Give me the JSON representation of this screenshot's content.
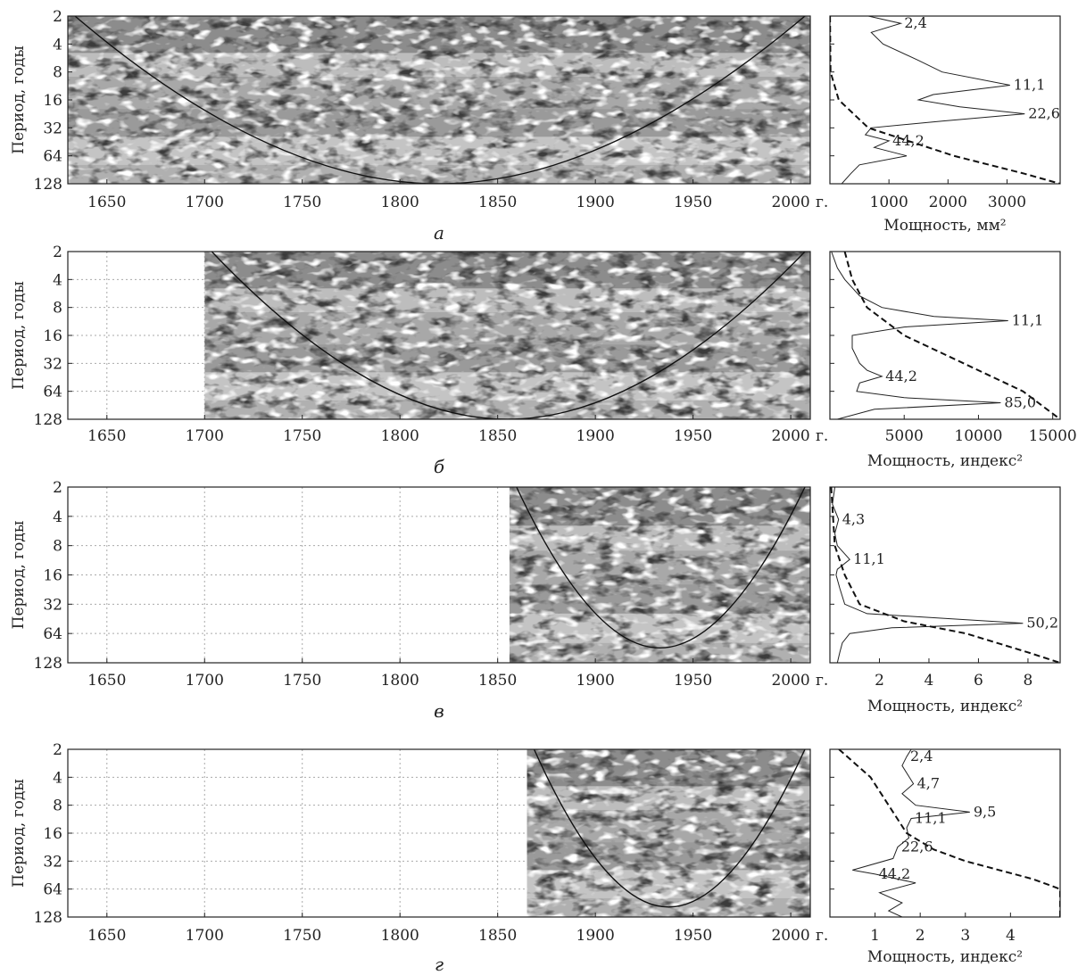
{
  "chart_data": [
    {
      "panel_letter": "а",
      "wavelet": {
        "type": "heatmap",
        "ylabel": "Период, годы",
        "y_ticks": [
          "2",
          "4",
          "8",
          "16",
          "32",
          "64",
          "128"
        ],
        "x_ticks": [
          "1650",
          "1700",
          "1750",
          "1800",
          "1850",
          "1900",
          "1950",
          "2000"
        ],
        "x_unit": "г.",
        "xlim": [
          1630,
          2010
        ],
        "data_start": 1630,
        "data_end": 2010,
        "cone_min_period": 128
      },
      "spectrum": {
        "type": "line",
        "xlabel": "Мощность, мм²",
        "x_ticks": [
          "1000",
          "2000",
          "3000"
        ],
        "x_tick_values": [
          1000,
          2000,
          3000
        ],
        "xlim": [
          0,
          3900
        ],
        "series": [
          {
            "period": [
              2,
              2.4,
              3,
              4,
              6,
              8,
              11.1,
              14,
              16,
              19,
              22.6,
              27,
              32,
              38,
              44.2,
              52,
              64,
              80,
              100,
              128
            ],
            "power": [
              650,
              1200,
              700,
              900,
              1500,
              1900,
              3050,
              1750,
              1500,
              2200,
              3300,
              1900,
              700,
              600,
              1000,
              750,
              1300,
              500,
              350,
              200
            ]
          }
        ],
        "significance": {
          "period": [
            2,
            8,
            16,
            32,
            64,
            100,
            128
          ],
          "power": [
            1,
            10,
            150,
            650,
            2100,
            3300,
            3900
          ]
        },
        "peak_labels": [
          {
            "text": "2,4",
            "period": 2.4,
            "power": 1200
          },
          {
            "text": "11,1",
            "period": 11.1,
            "power": 3050
          },
          {
            "text": "22,6",
            "period": 22.6,
            "power": 3300
          },
          {
            "text": "44,2",
            "period": 44.2,
            "power": 1000
          }
        ]
      }
    },
    {
      "panel_letter": "б",
      "wavelet": {
        "type": "heatmap",
        "ylabel": "Период, годы",
        "y_ticks": [
          "2",
          "4",
          "8",
          "16",
          "32",
          "64",
          "128"
        ],
        "x_ticks": [
          "1650",
          "1700",
          "1750",
          "1800",
          "1850",
          "1900",
          "1950",
          "2000"
        ],
        "x_unit": "г.",
        "xlim": [
          1630,
          2010
        ],
        "data_start": 1700,
        "data_end": 2010,
        "cone_min_period": 128
      },
      "spectrum": {
        "type": "line",
        "xlabel": "Мощность, индекс²",
        "x_ticks": [
          "5000",
          "10000",
          "15000"
        ],
        "x_tick_values": [
          5000,
          10000,
          15000
        ],
        "xlim": [
          0,
          15500
        ],
        "series": [
          {
            "period": [
              2,
              3,
              4,
              6,
              8,
              10,
              11.1,
              13,
              16,
              22,
              32,
              38,
              44.2,
              52,
              64,
              75,
              85,
              100,
              128
            ],
            "power": [
              100,
              500,
              1000,
              2000,
              3500,
              7000,
              12000,
              5000,
              1500,
              1500,
              2000,
              2500,
              3500,
              2000,
              1800,
              5000,
              11500,
              3000,
              500
            ]
          }
        ],
        "significance": {
          "period": [
            2,
            4,
            8,
            16,
            32,
            64,
            128
          ],
          "power": [
            1000,
            1500,
            2500,
            5000,
            9000,
            13000,
            15500
          ]
        },
        "peak_labels": [
          {
            "text": "11,1",
            "period": 11.1,
            "power": 12000
          },
          {
            "text": "44,2",
            "period": 44.2,
            "power": 3500
          },
          {
            "text": "85,0",
            "period": 85,
            "power": 11500
          }
        ]
      }
    },
    {
      "panel_letter": "в",
      "wavelet": {
        "type": "heatmap",
        "ylabel": "Период, годы",
        "y_ticks": [
          "2",
          "4",
          "8",
          "16",
          "32",
          "64",
          "128"
        ],
        "x_ticks": [
          "1650",
          "1700",
          "1750",
          "1800",
          "1850",
          "1900",
          "1950",
          "2000"
        ],
        "x_unit": "г.",
        "xlim": [
          1630,
          2010
        ],
        "data_start": 1856,
        "data_end": 2010,
        "cone_min_period": 90
      },
      "spectrum": {
        "type": "line",
        "xlabel": "Мощность, индекс²",
        "x_ticks": [
          "2",
          "4",
          "6",
          "8"
        ],
        "x_tick_values": [
          2,
          4,
          6,
          8
        ],
        "xlim": [
          0,
          9.3
        ],
        "series": [
          {
            "period": [
              2,
              3,
              4.3,
              6,
              8,
              11.1,
              14,
              16,
              22,
              32,
              40,
              50.2,
              56,
              64,
              80,
              100,
              128
            ],
            "power": [
              0.2,
              0.1,
              0.35,
              0.2,
              0.3,
              0.8,
              0.3,
              0.25,
              0.4,
              0.6,
              1.5,
              7.8,
              2.5,
              0.8,
              0.5,
              0.4,
              0.3
            ]
          }
        ],
        "significance": {
          "period": [
            2,
            8,
            16,
            32,
            48,
            64,
            100,
            128
          ],
          "power": [
            0.05,
            0.2,
            0.6,
            1.2,
            3,
            5.5,
            8,
            9.3
          ]
        },
        "peak_labels": [
          {
            "text": "4,3",
            "period": 4.3,
            "power": 0.35
          },
          {
            "text": "11,1",
            "period": 11.1,
            "power": 0.8
          },
          {
            "text": "50,2",
            "period": 50.2,
            "power": 7.8
          }
        ]
      }
    },
    {
      "panel_letter": "г",
      "wavelet": {
        "type": "heatmap",
        "ylabel": "Период, годы",
        "y_ticks": [
          "2",
          "4",
          "8",
          "16",
          "32",
          "64",
          "128"
        ],
        "x_ticks": [
          "1650",
          "1700",
          "1750",
          "1800",
          "1850",
          "1900",
          "1950",
          "2000"
        ],
        "x_unit": "г.",
        "xlim": [
          1630,
          2010
        ],
        "data_start": 1865,
        "data_end": 2010,
        "cone_min_period": 100
      },
      "spectrum": {
        "type": "line",
        "xlabel": "Мощность, индекс²",
        "x_ticks": [
          "1",
          "2",
          "3",
          "4"
        ],
        "x_tick_values": [
          1,
          2,
          3,
          4
        ],
        "xlim": [
          0,
          5.1
        ],
        "series": [
          {
            "period": [
              2,
              2.4,
              3,
              4.7,
              6,
              8,
              9.5,
              11.1,
              14,
              18,
              22.6,
              30,
              40,
              44.2,
              55,
              70,
              90,
              110,
              128
            ],
            "power": [
              1.8,
              1.7,
              1.6,
              1.85,
              1.6,
              1.9,
              3.1,
              1.8,
              1.7,
              1.75,
              1.5,
              1.4,
              0.5,
              1.0,
              1.9,
              1.1,
              1.6,
              1.3,
              1.6
            ]
          }
        ],
        "significance": {
          "period": [
            2,
            4,
            8,
            16,
            24,
            32,
            50,
            64,
            128
          ],
          "power": [
            0.2,
            0.9,
            1.3,
            1.7,
            2.3,
            3.0,
            4.5,
            5.1,
            5.1
          ]
        },
        "peak_labels": [
          {
            "text": "2,4",
            "period": 2.4,
            "power": 1.7
          },
          {
            "text": "4,7",
            "period": 4.7,
            "power": 1.85
          },
          {
            "text": "9,5",
            "period": 9.5,
            "power": 3.1
          },
          {
            "text": "11,1",
            "period": 11.1,
            "power": 1.8
          },
          {
            "text": "22,6",
            "period": 22.6,
            "power": 1.5
          },
          {
            "text": "44,2",
            "period": 44.2,
            "power": 1.0
          }
        ]
      }
    }
  ]
}
